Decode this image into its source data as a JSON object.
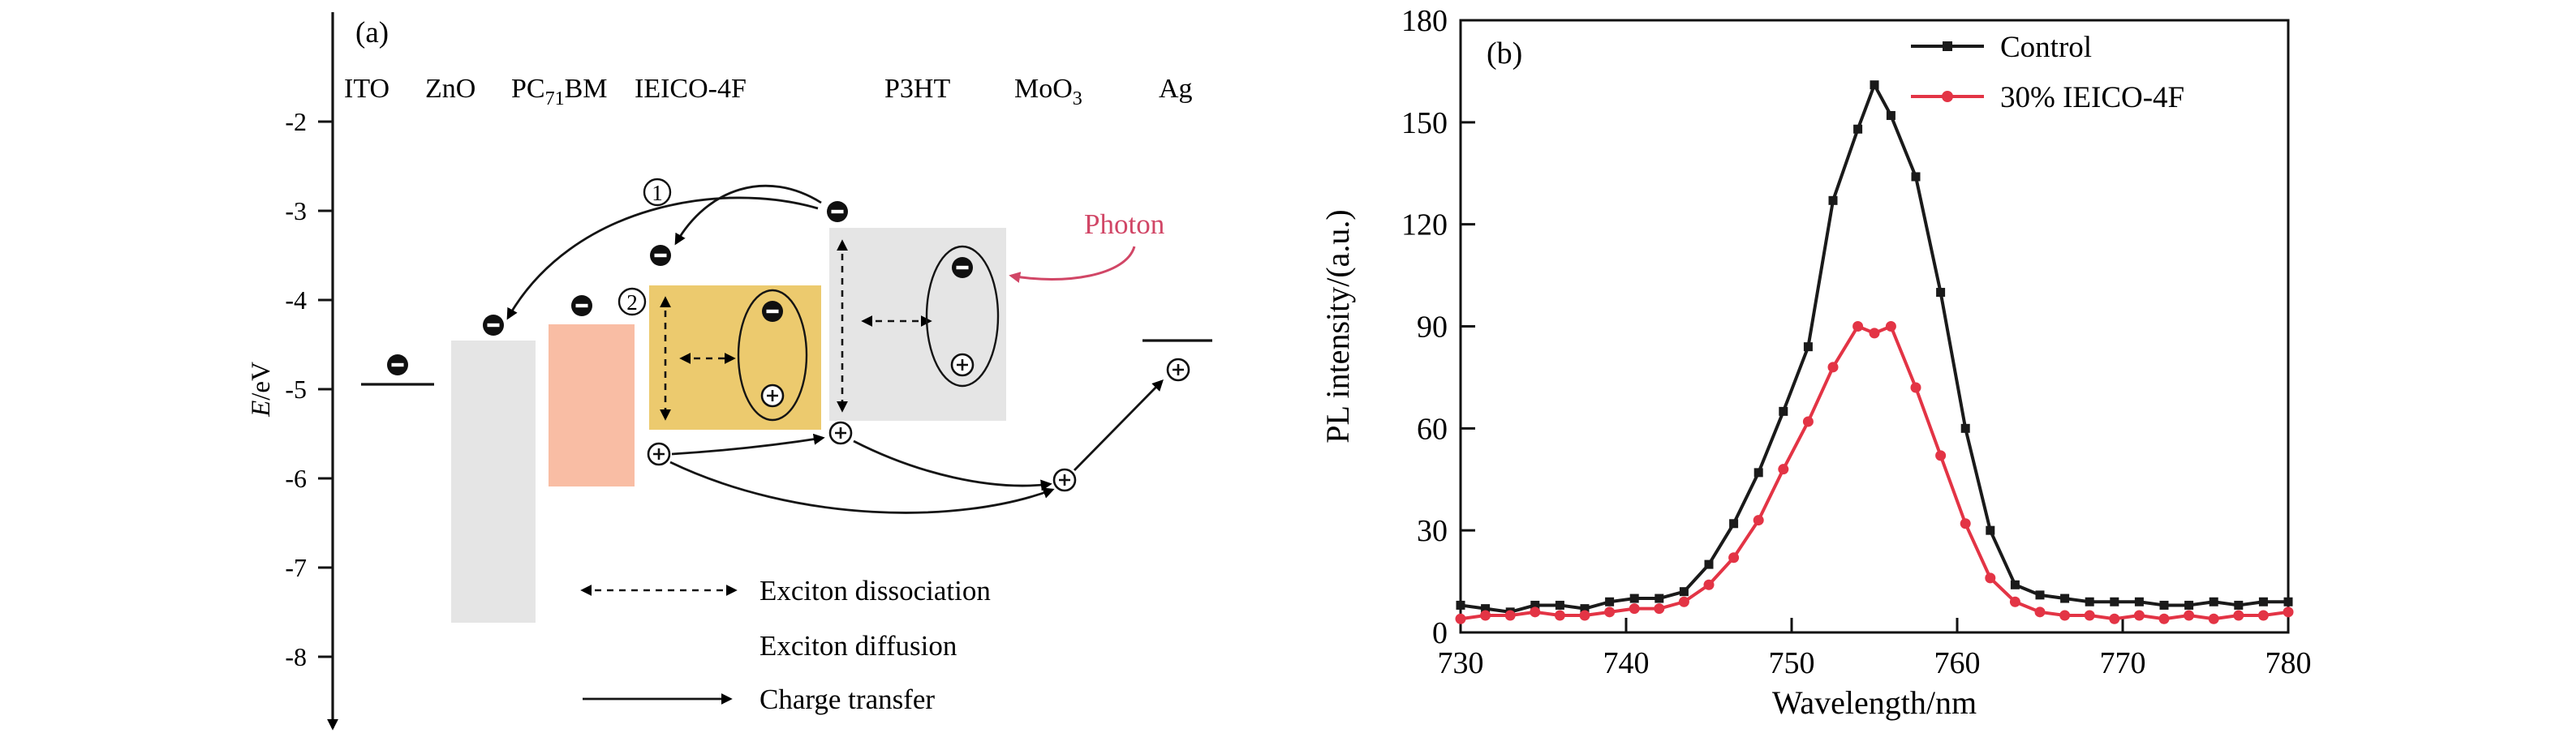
{
  "figure": {
    "panel_a": {
      "label": "(a)",
      "materials": [
        {
          "pre": "ITO",
          "sub": "",
          "post": ""
        },
        {
          "pre": "ZnO",
          "sub": "",
          "post": ""
        },
        {
          "pre": "PC",
          "sub": "71",
          "post": "BM"
        },
        {
          "pre": "IEICO-4F",
          "sub": "",
          "post": ""
        },
        {
          "pre": "P3HT",
          "sub": "",
          "post": ""
        },
        {
          "pre": "MoO",
          "sub": "3",
          "post": ""
        },
        {
          "pre": "Ag",
          "sub": "",
          "post": ""
        }
      ],
      "y_axis": {
        "symbol": "E",
        "unit": "/eV",
        "tick_labels": [
          "-2",
          "-3",
          "-4",
          "-5",
          "-6",
          "-7",
          "-8"
        ]
      },
      "annotations": {
        "step1": "1",
        "step2": "2",
        "photon": "Photon"
      },
      "legend": [
        {
          "label": "Exciton dissociation"
        },
        {
          "label": "Exciton diffusion"
        },
        {
          "label": "Charge transfer"
        }
      ],
      "colors": {
        "zno_box": "#e5e5e5",
        "pc71bm_box": "#f9bda4",
        "ieico4f_box": "#ecca6e",
        "p3ht_box": "#e5e5e5",
        "photon": "#d14666"
      }
    },
    "panel_b": {
      "label": "(b)"
    }
  },
  "chart_data": {
    "type": "line",
    "title": "",
    "xlabel": "Wavelength/nm",
    "ylabel": "PL intensity/(a.u.)",
    "xlim": [
      730,
      780
    ],
    "ylim": [
      0,
      180
    ],
    "xticks": [
      730,
      740,
      750,
      760,
      770,
      780
    ],
    "yticks": [
      0,
      30,
      60,
      90,
      120,
      150,
      180
    ],
    "grid": false,
    "legend_position": "top-inside",
    "x": [
      730,
      731.5,
      733,
      734.5,
      736,
      737.5,
      739,
      740.5,
      742,
      743.5,
      745,
      746.5,
      748,
      749.5,
      751,
      752.5,
      754,
      755,
      756,
      757.5,
      759,
      760.5,
      762,
      763.5,
      765,
      766.5,
      768,
      769.5,
      771,
      772.5,
      774,
      775.5,
      777,
      778.5,
      780
    ],
    "series": [
      {
        "name": "Control",
        "color": "#1a1a1a",
        "marker": "square",
        "values": [
          8,
          7,
          6,
          8,
          8,
          7,
          9,
          10,
          10,
          12,
          20,
          32,
          47,
          65,
          84,
          127,
          148,
          161,
          152,
          134,
          100,
          60,
          30,
          14,
          11,
          10,
          9,
          9,
          9,
          8,
          8,
          9,
          8,
          9,
          9
        ]
      },
      {
        "name": "30% IEICO-4F",
        "color": "#e33445",
        "marker": "circle",
        "values": [
          4,
          5,
          5,
          6,
          5,
          5,
          6,
          7,
          7,
          9,
          14,
          22,
          33,
          48,
          62,
          78,
          90,
          88,
          90,
          72,
          52,
          32,
          16,
          9,
          6,
          5,
          5,
          4,
          5,
          4,
          5,
          4,
          5,
          5,
          6
        ]
      }
    ]
  }
}
